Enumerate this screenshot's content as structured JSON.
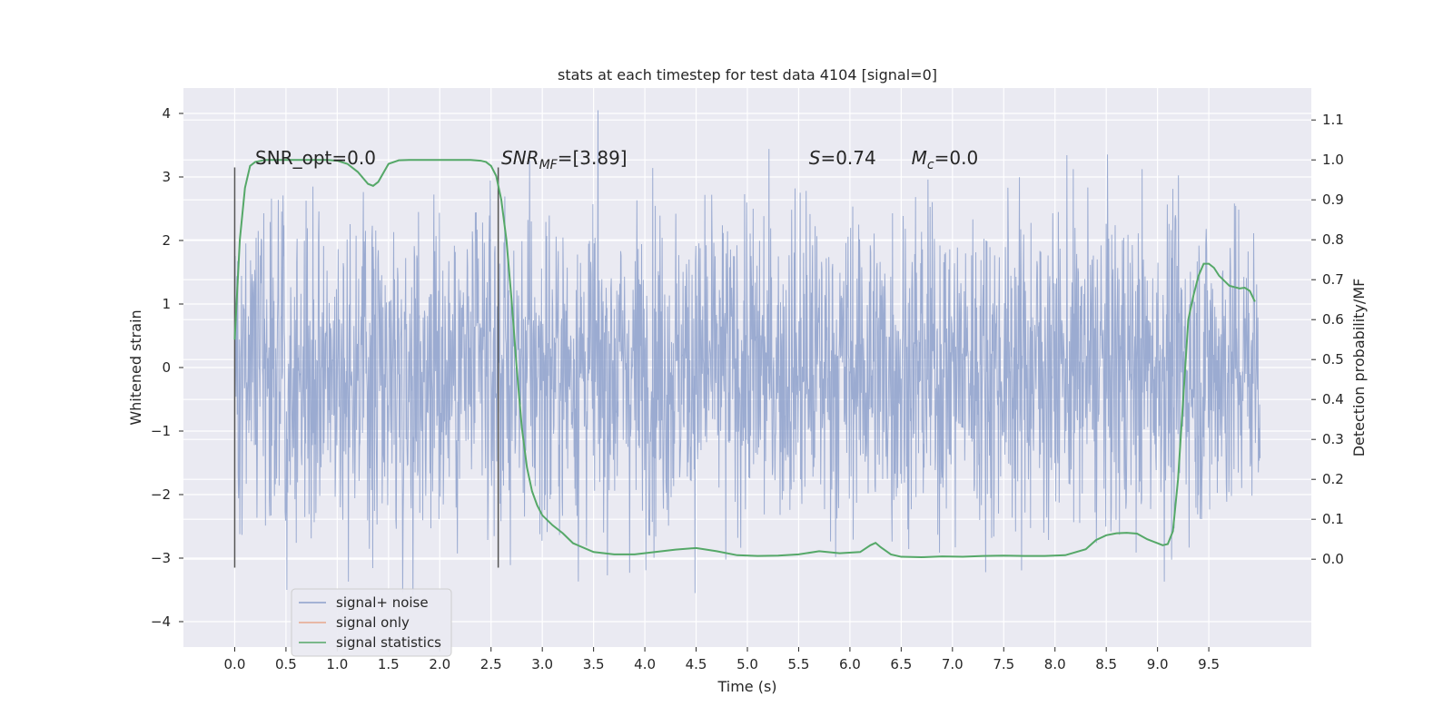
{
  "chart_data": {
    "type": "line",
    "title": "stats at each timestep for test data 4104 [signal=0]",
    "xlabel": "Time (s)",
    "ylabel": "Whitened strain",
    "ylabel_right": "Detection probability/MF",
    "xlim": [
      -0.5,
      10.5
    ],
    "ylim": [
      -4.4,
      4.4
    ],
    "ylim_right": [
      -0.22,
      1.18
    ],
    "x_ticks": [
      0.0,
      0.5,
      1.0,
      1.5,
      2.0,
      2.5,
      3.0,
      3.5,
      4.0,
      4.5,
      5.0,
      5.5,
      6.0,
      6.5,
      7.0,
      7.5,
      8.0,
      8.5,
      9.0,
      9.5
    ],
    "x_tick_labels": [
      "0.0",
      "0.5",
      "1.0",
      "1.5",
      "2.0",
      "2.5",
      "3.0",
      "3.5",
      "4.0",
      "4.5",
      "5.0",
      "5.5",
      "6.0",
      "6.5",
      "7.0",
      "7.5",
      "8.0",
      "8.5",
      "9.0",
      "9.5"
    ],
    "y_ticks": [
      -4,
      -3,
      -2,
      -1,
      0,
      1,
      2,
      3,
      4
    ],
    "y_tick_labels": [
      "−4",
      "−3",
      "−2",
      "−1",
      "0",
      "1",
      "2",
      "3",
      "4"
    ],
    "y_right_ticks": [
      0.0,
      0.1,
      0.2,
      0.3,
      0.4,
      0.5,
      0.6,
      0.7,
      0.8,
      0.9,
      1.0,
      1.1
    ],
    "y_right_tick_labels": [
      "0.0",
      "0.1",
      "0.2",
      "0.3",
      "0.4",
      "0.5",
      "0.6",
      "0.7",
      "0.8",
      "0.9",
      "1.0",
      "1.1"
    ],
    "grid": true,
    "legend_position": "lower-left",
    "vertical_markers": [
      0.0,
      2.57
    ],
    "annotations": [
      {
        "text": "SNR_opt=0.0",
        "x": 0.2
      },
      {
        "text": "SNR",
        "sub": "MF",
        "suffix": "=[3.89]",
        "x": 2.6,
        "italic": true
      },
      {
        "text": "S",
        "suffix": "=0.74",
        "x": 5.6,
        "italic": true
      },
      {
        "text": "M",
        "sub": "c",
        "suffix": "=0.0",
        "x": 6.6,
        "italic": true
      }
    ],
    "series": [
      {
        "name": "signal+ noise",
        "color": "#8da0cb",
        "axis": "left",
        "kind": "noise",
        "x_range": [
          0.0,
          10.0
        ],
        "approx_core_range": [
          -1.3,
          1.3
        ],
        "approx_peak_range": [
          -3.8,
          4.05
        ]
      },
      {
        "name": "signal only",
        "color": "#e8a88c",
        "axis": "left",
        "values": []
      },
      {
        "name": "signal statistics",
        "color": "#55a868",
        "axis": "right",
        "x": [
          0.0,
          0.05,
          0.1,
          0.15,
          0.2,
          0.3,
          0.5,
          0.7,
          0.9,
          1.0,
          1.1,
          1.2,
          1.3,
          1.35,
          1.4,
          1.5,
          1.6,
          1.7,
          1.9,
          2.1,
          2.3,
          2.4,
          2.45,
          2.5,
          2.55,
          2.6,
          2.65,
          2.7,
          2.75,
          2.8,
          2.85,
          2.9,
          2.95,
          3.0,
          3.1,
          3.2,
          3.3,
          3.5,
          3.7,
          3.9,
          4.1,
          4.3,
          4.5,
          4.7,
          4.9,
          5.1,
          5.3,
          5.5,
          5.7,
          5.9,
          6.1,
          6.2,
          6.25,
          6.3,
          6.4,
          6.5,
          6.7,
          6.9,
          7.1,
          7.3,
          7.5,
          7.7,
          7.9,
          8.1,
          8.3,
          8.4,
          8.5,
          8.6,
          8.7,
          8.8,
          8.9,
          9.0,
          9.05,
          9.1,
          9.15,
          9.2,
          9.25,
          9.3,
          9.35,
          9.4,
          9.45,
          9.5,
          9.55,
          9.6,
          9.7,
          9.8,
          9.85,
          9.9,
          9.95
        ],
        "values": [
          0.55,
          0.8,
          0.93,
          0.985,
          0.995,
          1.0,
          1.0,
          1.0,
          1.0,
          0.998,
          0.99,
          0.97,
          0.94,
          0.935,
          0.945,
          0.99,
          0.999,
          1.0,
          1.0,
          1.0,
          1.0,
          0.998,
          0.995,
          0.985,
          0.96,
          0.9,
          0.8,
          0.65,
          0.48,
          0.33,
          0.23,
          0.17,
          0.135,
          0.11,
          0.085,
          0.065,
          0.04,
          0.018,
          0.012,
          0.012,
          0.018,
          0.024,
          0.028,
          0.02,
          0.01,
          0.008,
          0.009,
          0.012,
          0.02,
          0.015,
          0.018,
          0.035,
          0.041,
          0.03,
          0.012,
          0.006,
          0.005,
          0.007,
          0.006,
          0.008,
          0.009,
          0.008,
          0.008,
          0.01,
          0.025,
          0.048,
          0.06,
          0.065,
          0.066,
          0.064,
          0.05,
          0.04,
          0.035,
          0.038,
          0.07,
          0.2,
          0.4,
          0.6,
          0.66,
          0.71,
          0.74,
          0.74,
          0.73,
          0.71,
          0.685,
          0.678,
          0.68,
          0.672,
          0.645
        ]
      }
    ]
  }
}
